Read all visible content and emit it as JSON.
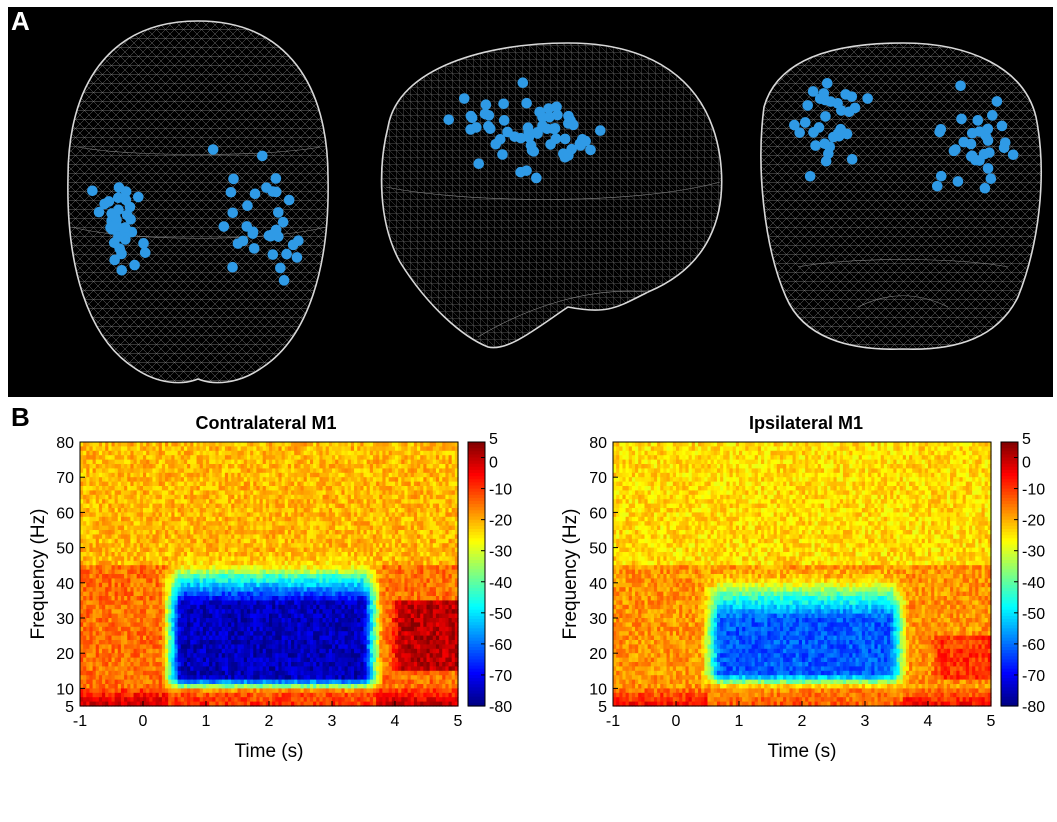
{
  "panel_a": {
    "label": "A",
    "views": [
      {
        "view": "top",
        "electrode_color": "#2f9ae6"
      },
      {
        "view": "lateral",
        "electrode_color": "#2f9ae6"
      },
      {
        "view": "frontal",
        "electrode_color": "#2f9ae6"
      }
    ]
  },
  "panel_b": {
    "label": "B"
  },
  "chart_data": [
    {
      "type": "heatmap",
      "title": "Contralateral M1",
      "xlabel": "Time (s)",
      "ylabel": "Frequency (Hz)",
      "xlim": [
        -1,
        5
      ],
      "ylim": [
        5,
        80
      ],
      "x_ticks": [
        -1,
        0,
        1,
        2,
        3,
        4,
        5
      ],
      "y_ticks": [
        5,
        10,
        20,
        30,
        40,
        50,
        60,
        70,
        80
      ],
      "colorbar": {
        "range": [
          -80,
          5
        ],
        "ticks": [
          5,
          0,
          -10,
          -20,
          -30,
          -40,
          -50,
          -60,
          -70,
          -80
        ],
        "colormap": "jet"
      },
      "desync_window": {
        "t_start": 0.3,
        "t_end": 3.8,
        "f_min": 9,
        "f_max": 50,
        "core_f_min": 12,
        "core_f_max": 34,
        "core_value": -75
      },
      "baseline_value": -15,
      "low_freq_rebound": {
        "f_max": 10,
        "value": 0
      },
      "post_movement_rebound": {
        "t_start": 3.9,
        "t_end": 5,
        "f_min": 15,
        "f_max": 35,
        "value": 0
      }
    },
    {
      "type": "heatmap",
      "title": "Ipsilateral M1",
      "xlabel": "Time (s)",
      "ylabel": "Frequency (Hz)",
      "xlim": [
        -1,
        5
      ],
      "ylim": [
        5,
        80
      ],
      "x_ticks": [
        -1,
        0,
        1,
        2,
        3,
        4,
        5
      ],
      "y_ticks": [
        5,
        10,
        20,
        30,
        40,
        50,
        60,
        70,
        80
      ],
      "colorbar": {
        "range": [
          -80,
          5
        ],
        "ticks": [
          5,
          0,
          -10,
          -20,
          -30,
          -40,
          -50,
          -60,
          -70,
          -80
        ],
        "colormap": "jet"
      },
      "desync_window": {
        "t_start": 0.4,
        "t_end": 3.7,
        "f_min": 10,
        "f_max": 45,
        "core_f_min": 13,
        "core_f_max": 30,
        "core_value": -62
      },
      "baseline_value": -18,
      "low_freq_rebound": {
        "f_max": 10,
        "value": -5
      },
      "post_movement_rebound": {
        "t_start": 4.0,
        "t_end": 5,
        "f_min": 12,
        "f_max": 25,
        "value": -10
      }
    }
  ]
}
